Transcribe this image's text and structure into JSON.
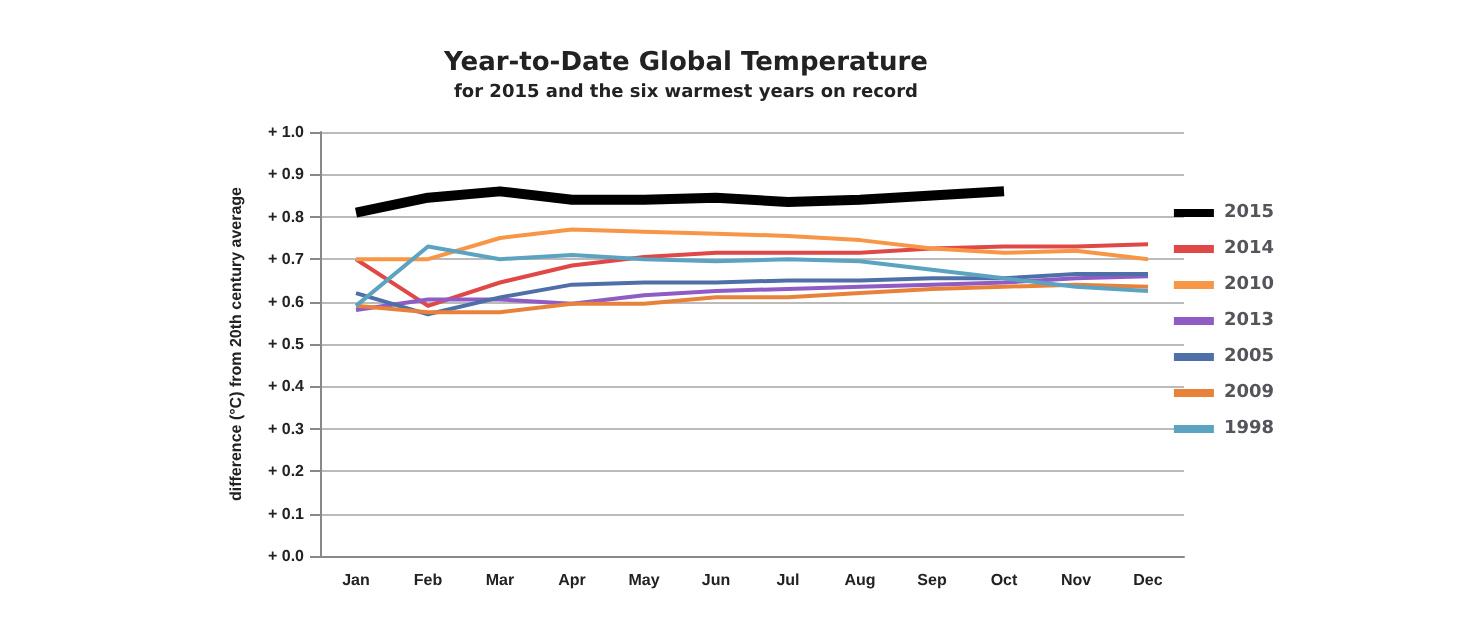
{
  "chart_data": {
    "type": "line",
    "title": "Year-to-Date Global Temperature",
    "subtitle": "for 2015 and the six warmest years on record",
    "ylabel": "difference (°C) from 20th century average",
    "categories": [
      "Jan",
      "Feb",
      "Mar",
      "Apr",
      "May",
      "Jun",
      "Jul",
      "Aug",
      "Sep",
      "Oct",
      "Nov",
      "Dec"
    ],
    "series": [
      {
        "name": "2015",
        "color": "#000000",
        "values": [
          0.81,
          0.845,
          0.86,
          0.84,
          0.84,
          0.845,
          0.835,
          0.84,
          0.85,
          0.86,
          null,
          null
        ]
      },
      {
        "name": "2014",
        "color": "#e04848",
        "values": [
          0.7,
          0.59,
          0.645,
          0.685,
          0.705,
          0.715,
          0.715,
          0.715,
          0.725,
          0.73,
          0.73,
          0.735
        ]
      },
      {
        "name": "2010",
        "color": "#f79646",
        "values": [
          0.7,
          0.7,
          0.75,
          0.77,
          0.765,
          0.76,
          0.755,
          0.745,
          0.725,
          0.715,
          0.72,
          0.7
        ]
      },
      {
        "name": "2013",
        "color": "#8e5cc4",
        "values": [
          0.58,
          0.605,
          0.605,
          0.595,
          0.615,
          0.625,
          0.63,
          0.635,
          0.64,
          0.645,
          0.655,
          0.66
        ]
      },
      {
        "name": "2005",
        "color": "#4f6fa8",
        "values": [
          0.62,
          0.57,
          0.61,
          0.64,
          0.645,
          0.645,
          0.65,
          0.65,
          0.655,
          0.655,
          0.665,
          0.665
        ]
      },
      {
        "name": "2009",
        "color": "#e8823a",
        "values": [
          0.59,
          0.575,
          0.575,
          0.595,
          0.595,
          0.61,
          0.61,
          0.62,
          0.63,
          0.635,
          0.64,
          0.635
        ]
      },
      {
        "name": "1998",
        "color": "#5ba3c0",
        "values": [
          0.59,
          0.73,
          0.7,
          0.71,
          0.7,
          0.695,
          0.7,
          0.695,
          0.675,
          0.655,
          0.635,
          0.625
        ]
      }
    ],
    "ylim": [
      0,
      1
    ],
    "yticks": [
      {
        "value": 0,
        "label": "+ 0.0"
      },
      {
        "value": 0.1,
        "label": "+ 0.1"
      },
      {
        "value": 0.2,
        "label": "+ 0.2"
      },
      {
        "value": 0.3,
        "label": "+ 0.3"
      },
      {
        "value": 0.4,
        "label": "+ 0.4"
      },
      {
        "value": 0.5,
        "label": "+ 0.5"
      },
      {
        "value": 0.6,
        "label": "+ 0.6"
      },
      {
        "value": 0.7,
        "label": "+ 0.7"
      },
      {
        "value": 0.8,
        "label": "+ 0.8"
      },
      {
        "value": 0.9,
        "label": "+ 0.9"
      },
      {
        "value": 1,
        "label": "+ 1.0"
      }
    ],
    "grid": "y",
    "legend": "right",
    "marker": "none",
    "line_style": "solid"
  }
}
